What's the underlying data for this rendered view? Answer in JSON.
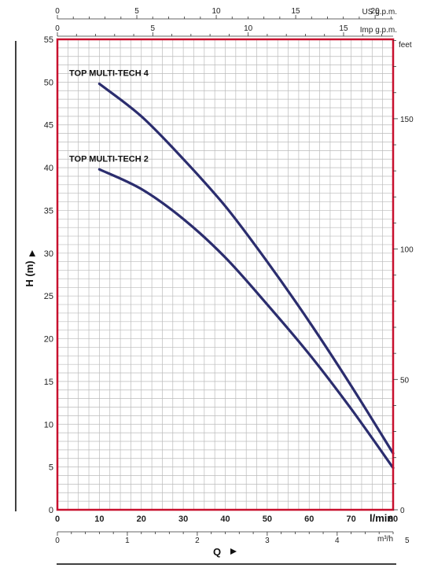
{
  "chart_data": {
    "type": "line",
    "series": [
      {
        "name": "TOP MULTI-TECH 4",
        "x": [
          10,
          20,
          30,
          40,
          50,
          60,
          70,
          80
        ],
        "y": [
          49.8,
          46.0,
          41.0,
          35.5,
          29.0,
          22.0,
          14.5,
          6.6
        ]
      },
      {
        "name": "TOP MULTI-TECH 2",
        "x": [
          10,
          20,
          30,
          40,
          50,
          60,
          70,
          80
        ],
        "y": [
          39.8,
          37.5,
          34.0,
          29.5,
          24.0,
          18.2,
          11.8,
          4.9
        ]
      }
    ],
    "x_axis": {
      "label": "Q",
      "unit": "l/min",
      "range": [
        0,
        80
      ],
      "ticks": [
        0,
        10,
        20,
        30,
        40,
        50,
        60,
        70,
        80
      ]
    },
    "y_axis": {
      "label": "H  (m)",
      "range": [
        0,
        55
      ],
      "ticks": [
        0,
        5,
        10,
        15,
        20,
        25,
        30,
        35,
        40,
        45,
        50,
        55
      ]
    },
    "secondary_axes": {
      "feet": {
        "unit": "feet",
        "ticks": [
          0,
          50,
          100,
          150
        ]
      },
      "imp_gpm": {
        "unit": "Imp g.p.m.",
        "ticks": [
          0,
          5,
          10,
          15
        ]
      },
      "us_gpm": {
        "unit": "US g.p.m.",
        "ticks": [
          0,
          5,
          10,
          15,
          20
        ]
      },
      "m3h": {
        "unit": "m³/h",
        "ticks": [
          0,
          1,
          2,
          3,
          4,
          5
        ]
      }
    },
    "grid": true,
    "colors": {
      "frame": "#c8102e",
      "grid": "#bbbbbb",
      "curve": "#2b2d6e"
    }
  }
}
